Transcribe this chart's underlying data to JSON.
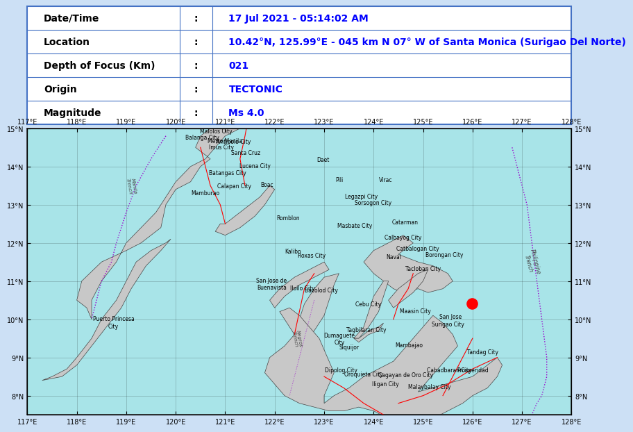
{
  "title_bar_color": "#d6e4f7",
  "border_color": "#4472c4",
  "table_header_color": "#ffffff",
  "table_bg_color": "#ffffff",
  "label_color": "#000000",
  "value_color": "#0000ff",
  "bold_label": true,
  "rows": [
    {
      "label": "Date/Time",
      "value": "17 Jul 2021 - 05:14:02 AM"
    },
    {
      "label": "Location",
      "value": "10.42°N, 125.99°E - 045 km N 07° W of Santa Monica (Surigao Del Norte)"
    },
    {
      "label": "Depth of Focus (Km)",
      "value": "021"
    },
    {
      "label": "Origin",
      "value": "TECTONIC"
    },
    {
      "label": "Magnitude",
      "value": "Ms 4.0"
    }
  ],
  "map_bg_color": "#a8e4e8",
  "map_land_color": "#d3d3d3",
  "map_border_color": "#555555",
  "map_xlim": [
    117,
    128
  ],
  "map_ylim": [
    7.5,
    15
  ],
  "epicenter_lon": 125.99,
  "epicenter_lat": 10.42,
  "epicenter_color": "#ff0000",
  "epicenter_size": 120,
  "trench_color": "#9900cc",
  "fault_color": "#ff0000",
  "grid_color": "#000000",
  "grid_alpha": 0.3,
  "city_label_color": "#000000",
  "city_label_fontsize": 5.5,
  "axis_label_fontsize": 7,
  "table_label_fontsize": 10,
  "table_value_fontsize": 10,
  "colon_col": 0.32,
  "label_col": 0.02,
  "value_col": 0.36,
  "cities": [
    {
      "name": "Malolos City",
      "lon": 120.81,
      "lat": 14.84
    },
    {
      "name": "Metro Manila",
      "lon": 121.0,
      "lat": 14.6
    },
    {
      "name": "Antipolo City",
      "lon": 121.17,
      "lat": 14.58
    },
    {
      "name": "Balanga City",
      "lon": 120.54,
      "lat": 14.68
    },
    {
      "name": "Imus City",
      "lon": 120.93,
      "lat": 14.43
    },
    {
      "name": "Santa Cruz",
      "lon": 121.41,
      "lat": 14.28
    },
    {
      "name": "Lucena City",
      "lon": 121.61,
      "lat": 13.93
    },
    {
      "name": "Batangas City",
      "lon": 121.05,
      "lat": 13.75
    },
    {
      "name": "Calapan City",
      "lon": 121.18,
      "lat": 13.41
    },
    {
      "name": "Mamburao",
      "lon": 120.6,
      "lat": 13.22
    },
    {
      "name": "Boac",
      "lon": 121.84,
      "lat": 13.45
    },
    {
      "name": "Daet",
      "lon": 122.98,
      "lat": 14.1
    },
    {
      "name": "Pili",
      "lon": 123.3,
      "lat": 13.58
    },
    {
      "name": "Virac",
      "lon": 124.24,
      "lat": 13.58
    },
    {
      "name": "Legazpi City",
      "lon": 123.75,
      "lat": 13.14
    },
    {
      "name": "Sorsogon City",
      "lon": 123.99,
      "lat": 12.97
    },
    {
      "name": "Romblon",
      "lon": 122.27,
      "lat": 12.58
    },
    {
      "name": "Masbate City",
      "lon": 123.62,
      "lat": 12.37
    },
    {
      "name": "Catarman",
      "lon": 124.64,
      "lat": 12.46
    },
    {
      "name": "Calbayog City",
      "lon": 124.6,
      "lat": 12.07
    },
    {
      "name": "Catbalogan City",
      "lon": 124.89,
      "lat": 11.77
    },
    {
      "name": "Borongan City",
      "lon": 125.43,
      "lat": 11.61
    },
    {
      "name": "Kalibo",
      "lon": 122.37,
      "lat": 11.71
    },
    {
      "name": "Roxas City",
      "lon": 122.75,
      "lat": 11.59
    },
    {
      "name": "Naval",
      "lon": 124.41,
      "lat": 11.56
    },
    {
      "name": "Tacloban City",
      "lon": 125.0,
      "lat": 11.24
    },
    {
      "name": "San Jose de\nBuenavista",
      "lon": 121.94,
      "lat": 10.75
    },
    {
      "name": "Iloilo City",
      "lon": 122.56,
      "lat": 10.73
    },
    {
      "name": "Bacolod City",
      "lon": 122.95,
      "lat": 10.68
    },
    {
      "name": "Cebu City",
      "lon": 123.89,
      "lat": 10.31
    },
    {
      "name": "Maasin City",
      "lon": 124.84,
      "lat": 10.14
    },
    {
      "name": "San Jose",
      "lon": 125.56,
      "lat": 10.0
    },
    {
      "name": "Puerto Princesa\nCity",
      "lon": 118.74,
      "lat": 9.74
    },
    {
      "name": "Tagbilaran City",
      "lon": 123.85,
      "lat": 9.65
    },
    {
      "name": "Surigao City",
      "lon": 125.5,
      "lat": 9.79
    },
    {
      "name": "Dumaguete\nCity",
      "lon": 123.31,
      "lat": 9.31
    },
    {
      "name": "Siquijor",
      "lon": 123.51,
      "lat": 9.2
    },
    {
      "name": "Mambajao",
      "lon": 124.72,
      "lat": 9.25
    },
    {
      "name": "Tandag City",
      "lon": 126.2,
      "lat": 9.07
    },
    {
      "name": "Dipolog City",
      "lon": 123.34,
      "lat": 8.59
    },
    {
      "name": "Oroquieta City",
      "lon": 123.8,
      "lat": 8.48
    },
    {
      "name": "Cagayan de Oro City",
      "lon": 124.65,
      "lat": 8.47
    },
    {
      "name": "Iligan City",
      "lon": 124.24,
      "lat": 8.23
    },
    {
      "name": "Malaybalay City",
      "lon": 125.13,
      "lat": 8.15
    },
    {
      "name": "Cabadbaran City",
      "lon": 125.53,
      "lat": 8.6
    },
    {
      "name": "Prosperidad",
      "lon": 126.0,
      "lat": 8.6
    }
  ],
  "trench_label": "Philippine\nTrench",
  "trench_label_lon": 127.2,
  "trench_label_lat": 11.5,
  "negros_trench_label": "Negros\nTrench",
  "negros_trench_label_lon": 122.45,
  "negros_trench_label_lat": 9.5,
  "manila_trench_label": "Manila\nTrench",
  "manila_trench_label_lon": 119.1,
  "manila_trench_label_lat": 13.5
}
